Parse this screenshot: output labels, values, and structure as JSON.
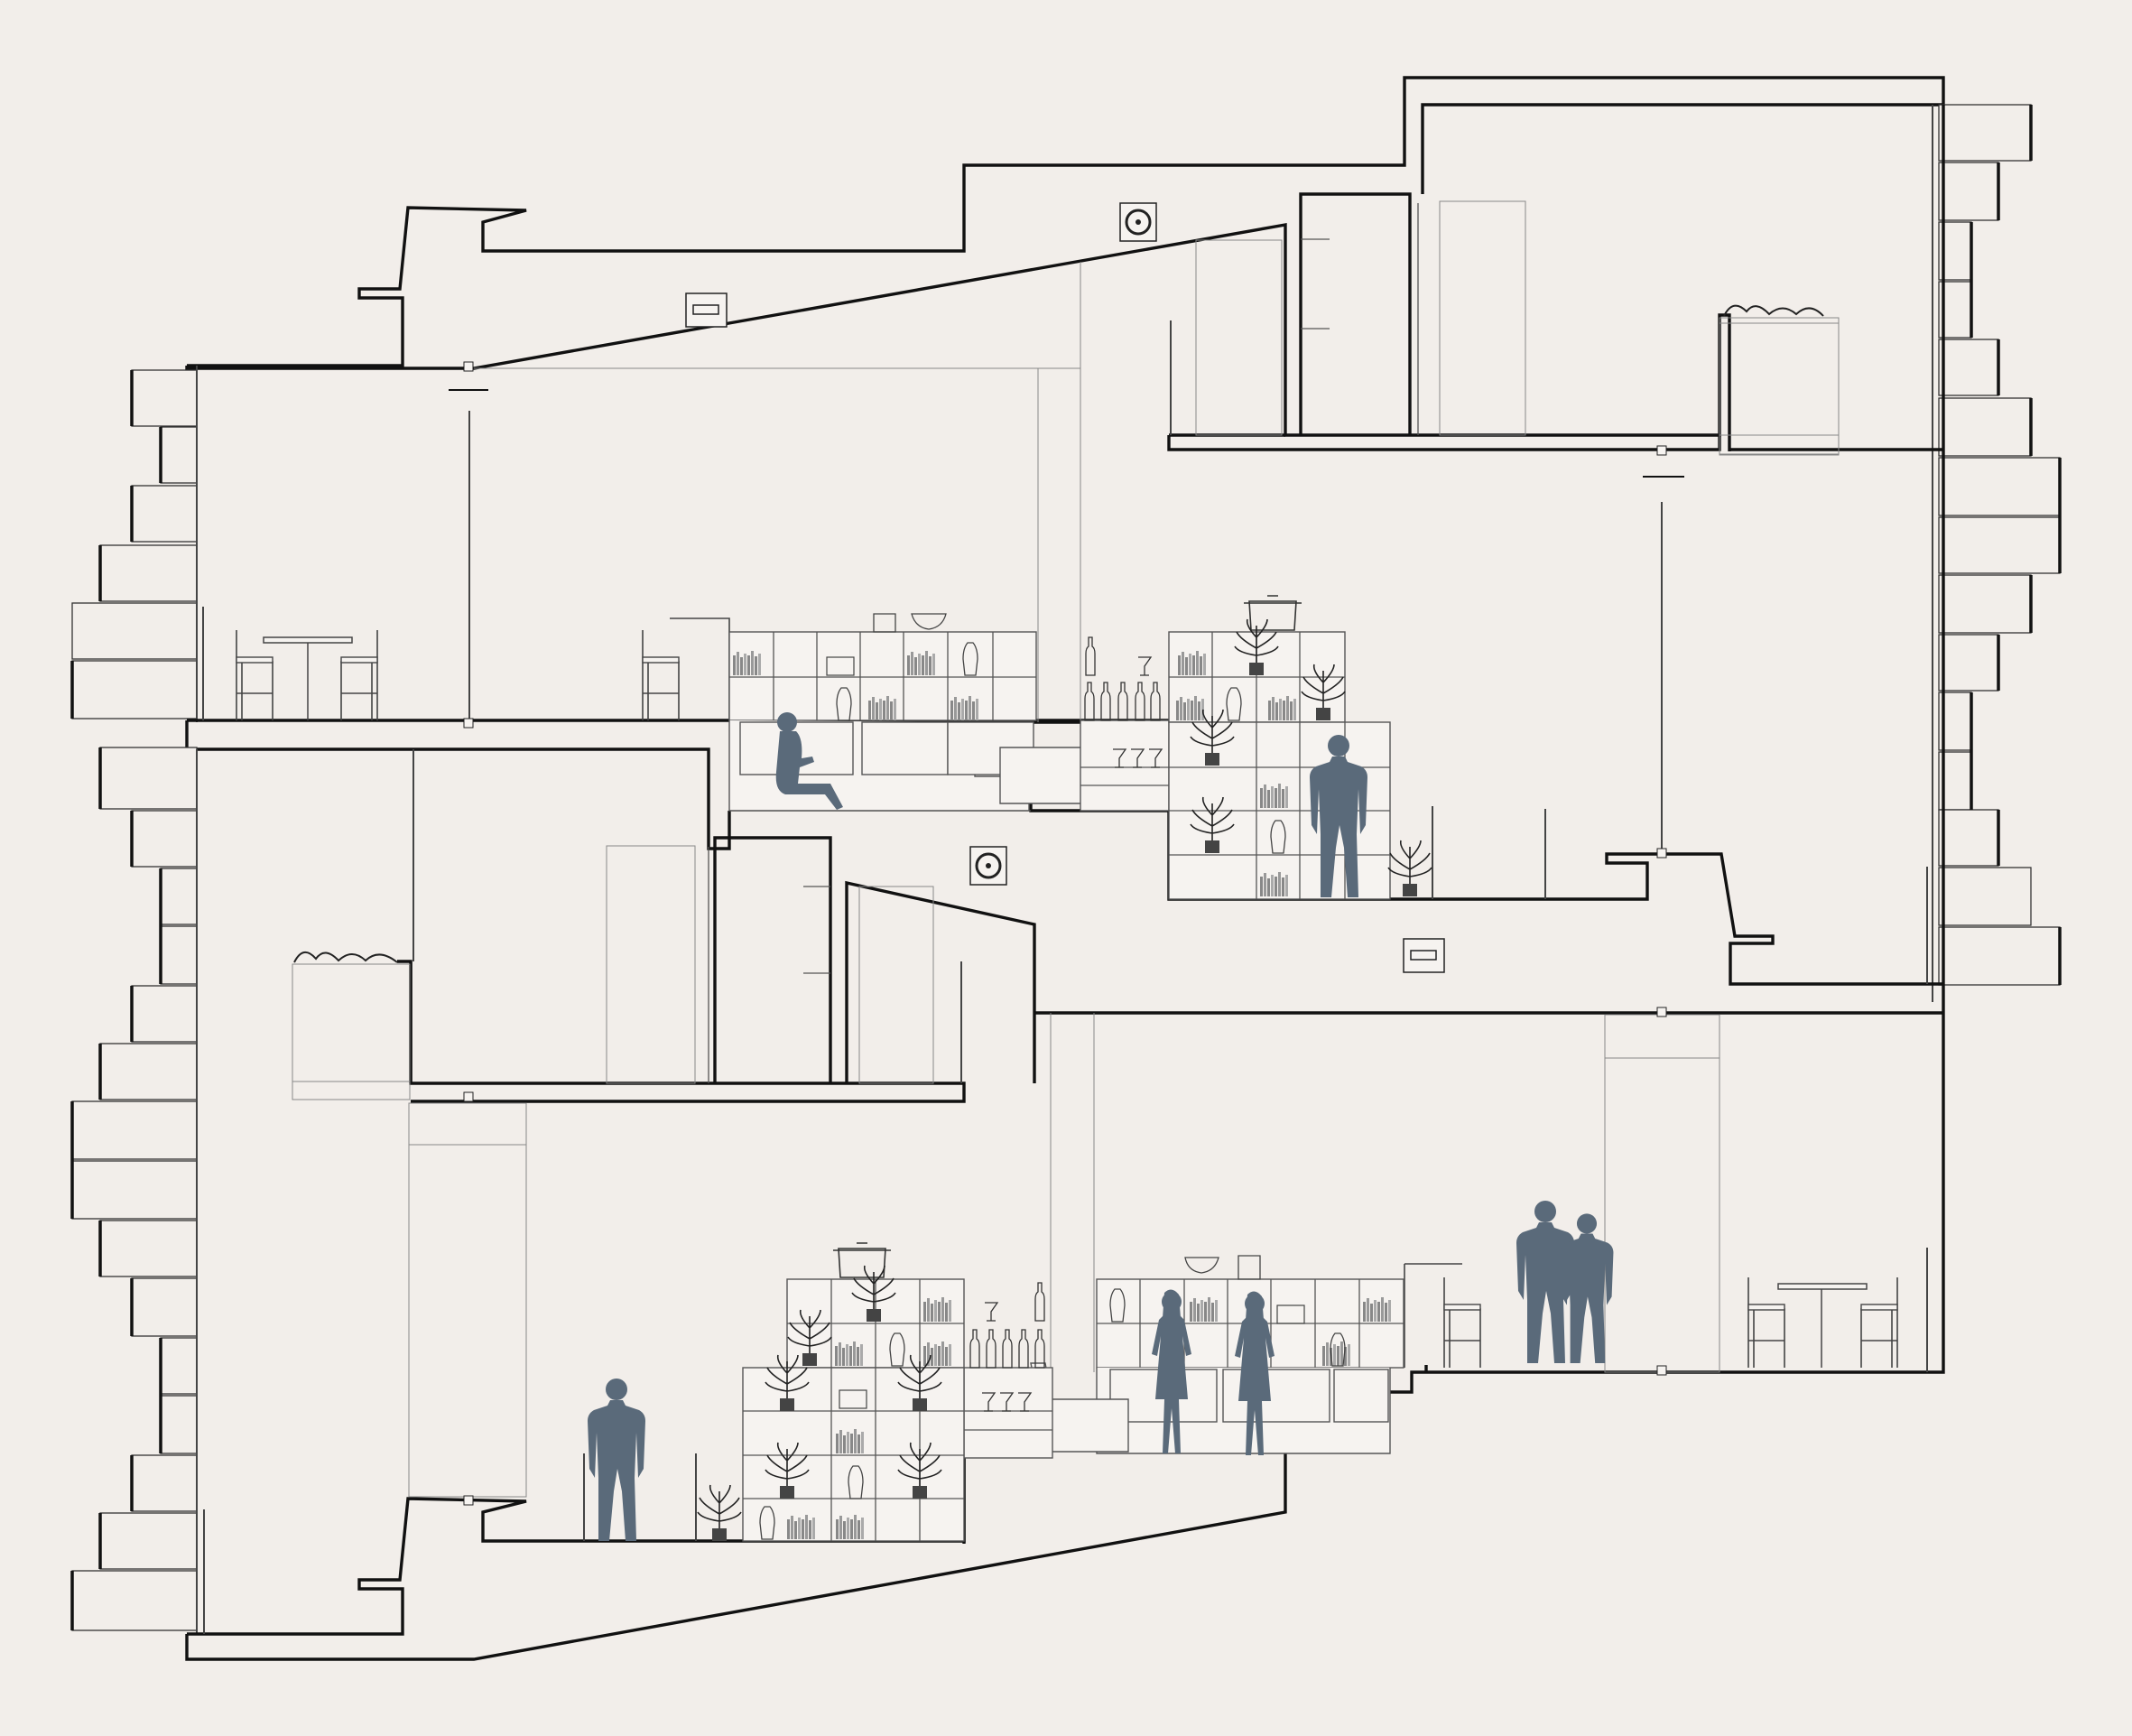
{
  "drawing": {
    "fill_color": "#f2eeea",
    "line_color": "#111111",
    "figure_color": "#5a6a7a"
  }
}
